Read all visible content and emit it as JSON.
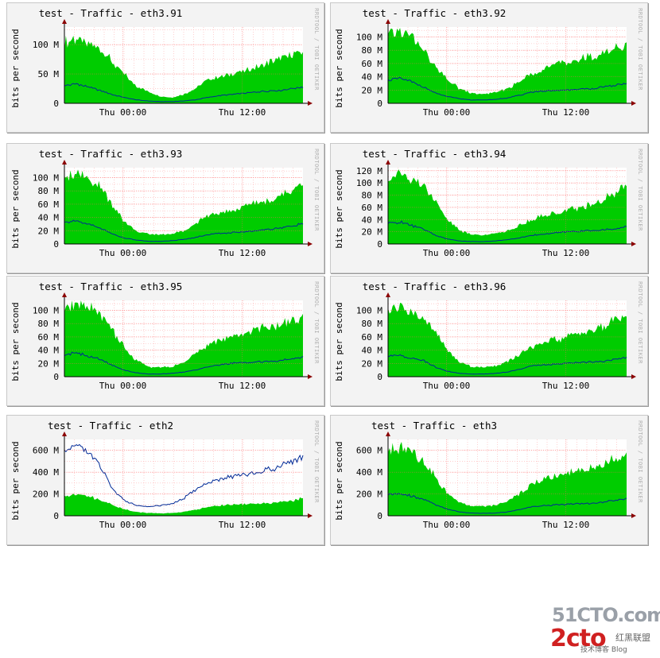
{
  "watermark": {
    "line1": "51CTO.com",
    "line2": "2cto",
    "line3": "红黑联盟",
    "caption": "技术博客 Blog"
  },
  "chart_data": [
    {
      "type": "area",
      "title": "test - Traffic - eth3.91",
      "ylabel": "bits per second",
      "vertical_label": "RRDTOOL / TOBI OETIKER",
      "x_ticks": [
        "Thu 00:00",
        "Thu 12:00"
      ],
      "y_ticks": [
        "0",
        "50 M",
        "100 M"
      ],
      "y_tick_values": [
        0,
        50,
        100
      ],
      "ylim": [
        0,
        130
      ],
      "units": "M",
      "grid": true,
      "series": [
        {
          "name": "",
          "style": "area",
          "color": "#00cc00",
          "values": [
            105,
            110,
            100,
            95,
            70,
            50,
            30,
            20,
            12,
            10,
            15,
            25,
            40,
            45,
            50,
            55,
            60,
            68,
            75,
            82,
            88
          ]
        },
        {
          "name": "",
          "style": "line",
          "color": "#002a97",
          "values": [
            30,
            33,
            28,
            22,
            15,
            10,
            6,
            4,
            3,
            3,
            4,
            6,
            10,
            13,
            15,
            17,
            19,
            21,
            22,
            25,
            28
          ]
        }
      ]
    },
    {
      "type": "area",
      "title": "test - Traffic - eth3.92",
      "ylabel": "bits per second",
      "vertical_label": "RRDTOOL / TOBI OETIKER",
      "x_ticks": [
        "Thu 00:00",
        "Thu 12:00"
      ],
      "y_ticks": [
        "0",
        "20 M",
        "40 M",
        "60 M",
        "80 M",
        "100 M"
      ],
      "y_tick_values": [
        0,
        20,
        40,
        60,
        80,
        100
      ],
      "ylim": [
        0,
        115
      ],
      "units": "M",
      "grid": true,
      "series": [
        {
          "name": "",
          "style": "area",
          "color": "#00cc00",
          "values": [
            100,
            108,
            100,
            80,
            55,
            35,
            22,
            15,
            14,
            16,
            22,
            32,
            45,
            52,
            58,
            62,
            66,
            70,
            75,
            82,
            88
          ]
        },
        {
          "name": "",
          "style": "line",
          "color": "#002a97",
          "values": [
            35,
            38,
            32,
            25,
            15,
            10,
            7,
            5,
            5,
            6,
            8,
            12,
            17,
            18,
            19,
            20,
            21,
            22,
            24,
            27,
            30
          ]
        }
      ]
    },
    {
      "type": "area",
      "title": "test - Traffic - eth3.93",
      "ylabel": "bits per second",
      "vertical_label": "RRDTOOL / TOBI OETIKER",
      "x_ticks": [
        "Thu 00:00",
        "Thu 12:00"
      ],
      "y_ticks": [
        "0",
        "20 M",
        "40 M",
        "60 M",
        "80 M",
        "100 M"
      ],
      "y_tick_values": [
        0,
        20,
        40,
        60,
        80,
        100
      ],
      "ylim": [
        0,
        115
      ],
      "units": "M",
      "grid": true,
      "series": [
        {
          "name": "",
          "style": "area",
          "color": "#00cc00",
          "values": [
            105,
            110,
            100,
            85,
            60,
            35,
            20,
            15,
            14,
            15,
            20,
            30,
            42,
            48,
            52,
            56,
            62,
            66,
            70,
            80,
            95
          ]
        },
        {
          "name": "",
          "style": "line",
          "color": "#002a97",
          "values": [
            32,
            35,
            30,
            24,
            15,
            9,
            6,
            4,
            4,
            5,
            7,
            10,
            14,
            16,
            17,
            18,
            20,
            22,
            24,
            27,
            30
          ]
        }
      ]
    },
    {
      "type": "area",
      "title": "test - Traffic - eth3.94",
      "ylabel": "bits per second",
      "vertical_label": "RRDTOOL / TOBI OETIKER",
      "x_ticks": [
        "Thu 00:00",
        "Thu 12:00"
      ],
      "y_ticks": [
        "0",
        "20 M",
        "40 M",
        "60 M",
        "80 M",
        "100 M",
        "120 M"
      ],
      "y_tick_values": [
        0,
        20,
        40,
        60,
        80,
        100,
        120
      ],
      "ylim": [
        0,
        125
      ],
      "units": "M",
      "grid": true,
      "series": [
        {
          "name": "",
          "style": "area",
          "color": "#00cc00",
          "values": [
            110,
            115,
            105,
            95,
            70,
            40,
            22,
            16,
            15,
            17,
            22,
            30,
            40,
            46,
            50,
            55,
            60,
            65,
            72,
            82,
            95
          ]
        },
        {
          "name": "",
          "style": "line",
          "color": "#002a97",
          "values": [
            34,
            36,
            30,
            24,
            14,
            8,
            5,
            4,
            4,
            5,
            7,
            10,
            14,
            16,
            18,
            20,
            21,
            22,
            23,
            25,
            28
          ]
        }
      ]
    },
    {
      "type": "area",
      "title": "test - Traffic - eth3.95",
      "ylabel": "bits per second",
      "vertical_label": "RRDTOOL / TOBI OETIKER",
      "x_ticks": [
        "Thu 00:00",
        "Thu 12:00"
      ],
      "y_ticks": [
        "0",
        "20 M",
        "40 M",
        "60 M",
        "80 M",
        "100 M"
      ],
      "y_tick_values": [
        0,
        20,
        40,
        60,
        80,
        100
      ],
      "ylim": [
        0,
        115
      ],
      "units": "M",
      "grid": true,
      "series": [
        {
          "name": "",
          "style": "area",
          "color": "#00cc00",
          "values": [
            100,
            108,
            105,
            95,
            70,
            45,
            25,
            15,
            14,
            15,
            22,
            35,
            48,
            55,
            60,
            65,
            70,
            74,
            78,
            85,
            92
          ]
        },
        {
          "name": "",
          "style": "line",
          "color": "#002a97",
          "values": [
            33,
            36,
            31,
            26,
            17,
            10,
            6,
            4,
            4,
            5,
            7,
            10,
            15,
            18,
            20,
            21,
            22,
            23,
            24,
            27,
            30
          ]
        }
      ]
    },
    {
      "type": "area",
      "title": "test - Traffic - eth3.96",
      "ylabel": "bits per second",
      "vertical_label": "RRDTOOL / TOBI OETIKER",
      "x_ticks": [
        "Thu 00:00",
        "Thu 12:00"
      ],
      "y_ticks": [
        "0",
        "20 M",
        "40 M",
        "60 M",
        "80 M",
        "100 M"
      ],
      "y_tick_values": [
        0,
        20,
        40,
        60,
        80,
        100
      ],
      "ylim": [
        0,
        115
      ],
      "units": "M",
      "grid": true,
      "series": [
        {
          "name": "",
          "style": "area",
          "color": "#00cc00",
          "values": [
            100,
            105,
            98,
            90,
            65,
            40,
            22,
            15,
            14,
            16,
            22,
            32,
            45,
            50,
            55,
            60,
            64,
            68,
            75,
            85,
            95
          ]
        },
        {
          "name": "",
          "style": "line",
          "color": "#002a97",
          "values": [
            30,
            32,
            28,
            24,
            14,
            8,
            5,
            4,
            4,
            5,
            7,
            11,
            16,
            18,
            19,
            20,
            21,
            22,
            23,
            26,
            28
          ]
        }
      ]
    },
    {
      "type": "area",
      "title": "test - Traffic - eth2",
      "ylabel": "bits per second",
      "vertical_label": "RRDTOOL / TOBI OETIKER",
      "x_ticks": [
        "Thu 00:00",
        "Thu 12:00"
      ],
      "y_ticks": [
        "0",
        "200 M",
        "400 M",
        "600 M"
      ],
      "y_tick_values": [
        0,
        200,
        400,
        600
      ],
      "ylim": [
        0,
        700
      ],
      "units": "M",
      "grid": true,
      "series": [
        {
          "name": "",
          "style": "area",
          "color": "#00cc00",
          "values": [
            190,
            200,
            180,
            150,
            100,
            60,
            35,
            25,
            22,
            25,
            35,
            55,
            80,
            95,
            100,
            105,
            110,
            115,
            125,
            140,
            160
          ]
        },
        {
          "name": "",
          "style": "line",
          "color": "#002a97",
          "values": [
            600,
            640,
            590,
            450,
            250,
            140,
            95,
            85,
            90,
            110,
            160,
            240,
            300,
            340,
            360,
            380,
            400,
            420,
            450,
            500,
            540
          ]
        }
      ]
    },
    {
      "type": "area",
      "title": "test - Traffic - eth3",
      "ylabel": "bits per second",
      "vertical_label": "RRDTOOL / TOBI OETIKER",
      "x_ticks": [
        "Thu 00:00",
        "Thu 12:00"
      ],
      "y_ticks": [
        "0",
        "200 M",
        "400 M",
        "600 M"
      ],
      "y_tick_values": [
        0,
        200,
        400,
        600
      ],
      "ylim": [
        0,
        700
      ],
      "units": "M",
      "grid": true,
      "series": [
        {
          "name": "",
          "style": "area",
          "color": "#00cc00",
          "values": [
            600,
            640,
            580,
            500,
            350,
            200,
            120,
            90,
            85,
            95,
            130,
            200,
            280,
            330,
            360,
            390,
            420,
            440,
            470,
            520,
            560
          ]
        },
        {
          "name": "",
          "style": "line",
          "color": "#002a97",
          "values": [
            190,
            200,
            180,
            150,
            100,
            60,
            35,
            25,
            22,
            25,
            35,
            55,
            80,
            95,
            100,
            105,
            110,
            115,
            125,
            140,
            160
          ]
        }
      ]
    }
  ]
}
